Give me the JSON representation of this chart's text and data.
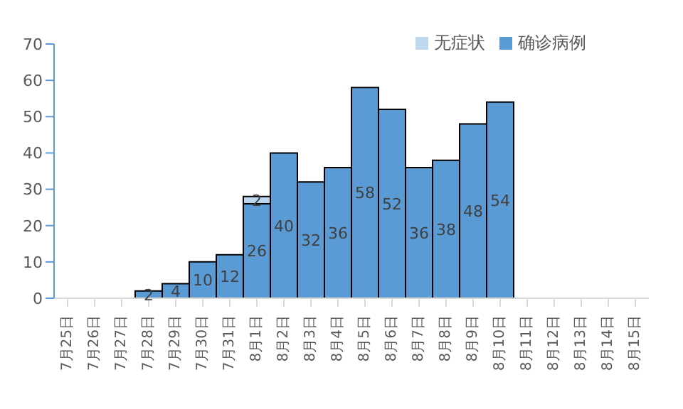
{
  "chart_data": {
    "type": "bar",
    "stacked": true,
    "categories": [
      "7月25日",
      "7月26日",
      "7月27日",
      "7月28日",
      "7月29日",
      "7月30日",
      "7月31日",
      "8月1日",
      "8月2日",
      "8月3日",
      "8月4日",
      "8月5日",
      "8月6日",
      "8月7日",
      "8月8日",
      "8月9日",
      "8月10日",
      "8月11日",
      "8月12日",
      "8月13日",
      "8月14日",
      "8月15日"
    ],
    "series": [
      {
        "name": "确诊病例",
        "color": "#5b9bd5",
        "values": [
          null,
          null,
          null,
          2,
          4,
          10,
          12,
          26,
          40,
          32,
          36,
          58,
          52,
          36,
          38,
          48,
          54,
          null,
          null,
          null,
          null,
          null
        ]
      },
      {
        "name": "无症状",
        "color": "#bdd7ee",
        "values": [
          null,
          null,
          null,
          null,
          null,
          null,
          null,
          2,
          null,
          null,
          null,
          null,
          null,
          null,
          null,
          null,
          null,
          null,
          null,
          null,
          null,
          null
        ]
      }
    ],
    "ylim": [
      0,
      70
    ],
    "yticks": [
      0,
      10,
      20,
      30,
      40,
      50,
      60,
      70
    ],
    "grid": false,
    "legend": "top right",
    "data_labels": true
  }
}
